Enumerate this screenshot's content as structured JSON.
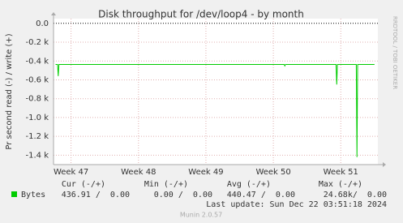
{
  "chart_data": {
    "type": "line",
    "title": "Disk throughput for /dev/loop4 - by month",
    "y_label": "Pr second read (-) / write (+)",
    "side_label": "RRDTOOL / TOBI OETIKER",
    "ylim": [
      -1500,
      50
    ],
    "yticks": [
      {
        "value": 0,
        "label": "0.0"
      },
      {
        "value": -200,
        "label": "-0.2 k"
      },
      {
        "value": -400,
        "label": "-0.4 k"
      },
      {
        "value": -600,
        "label": "-0.6 k"
      },
      {
        "value": -800,
        "label": "-0.8 k"
      },
      {
        "value": -1000,
        "label": "-1.0 k"
      },
      {
        "value": -1200,
        "label": "-1.2 k"
      },
      {
        "value": -1400,
        "label": "-1.4 k"
      }
    ],
    "xlim": [
      46.74,
      51.55
    ],
    "xticks": [
      {
        "value": 47,
        "label": "Week 47"
      },
      {
        "value": 48,
        "label": "Week 48"
      },
      {
        "value": 49,
        "label": "Week 49"
      },
      {
        "value": 50,
        "label": "Week 50"
      },
      {
        "value": 51,
        "label": "Week 51"
      }
    ],
    "grid": true,
    "x": [
      46.77,
      46.8,
      46.81,
      46.82,
      50.16,
      50.17,
      50.18,
      50.93,
      50.94,
      50.95,
      51.23,
      51.24,
      51.25,
      51.5
    ],
    "series": [
      {
        "name": "Bytes",
        "color": "#00cc00",
        "values": [
          -437,
          -437,
          -560,
          -437,
          -437,
          -452,
          -437,
          -437,
          -650,
          -437,
          -437,
          -1420,
          -437,
          -437
        ]
      }
    ],
    "stat_headers": [
      "Cur (-/+)",
      "Min (-/+)",
      "Avg (-/+)",
      "Max (-/+)"
    ],
    "stat_values": [
      "436.91 /  0.00",
      "0.00 /  0.00",
      "440.47 /  0.00",
      "24.68k/  0.00"
    ],
    "last_update": "Last update: Sun Dec 22 03:51:18 2024",
    "footer": "Munin 2.0.57"
  }
}
